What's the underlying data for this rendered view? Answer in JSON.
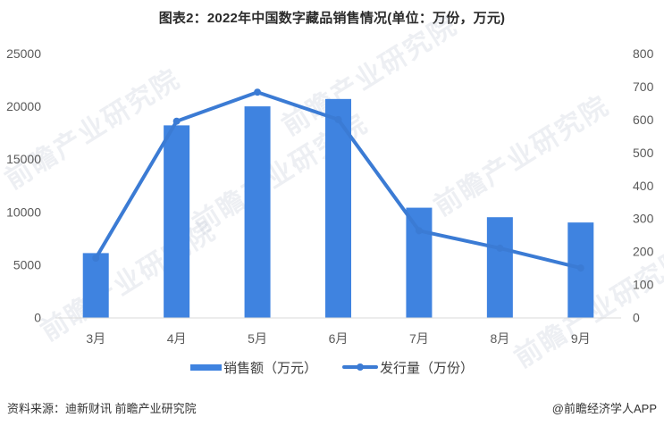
{
  "title": "图表2：2022年中国数字藏品销售情况(单位：万份，万元)",
  "watermark": {
    "text": "前瞻产业研究院"
  },
  "legend": {
    "bar_label": "销售额（万元）",
    "line_label": "发行量（万份）"
  },
  "footer": {
    "source": "资料来源：迪新财讯 前瞻产业研究院",
    "credit": "@前瞻经济学人APP"
  },
  "colors": {
    "bar": "#3f83e0",
    "line": "#3b7bd4",
    "axis": "#d9d9d9",
    "tick_text": "#595959"
  },
  "chart_data": {
    "type": "bar+line",
    "title": "图表2：2022年中国数字藏品销售情况(单位：万份，万元)",
    "categories": [
      "3月",
      "4月",
      "5月",
      "6月",
      "7月",
      "8月",
      "9月"
    ],
    "series": [
      {
        "name": "销售额（万元）",
        "type": "bar",
        "axis": "left",
        "values": [
          6100,
          18200,
          20000,
          20700,
          10400,
          9500,
          9000
        ]
      },
      {
        "name": "发行量（万份）",
        "type": "line",
        "axis": "right",
        "values": [
          180,
          595,
          683,
          600,
          263,
          210,
          150
        ]
      }
    ],
    "left_axis": {
      "ylim": [
        0,
        25000
      ],
      "ticks": [
        0,
        5000,
        10000,
        15000,
        20000,
        25000
      ]
    },
    "right_axis": {
      "ylim": [
        0,
        800
      ],
      "ticks": [
        0,
        100,
        200,
        300,
        400,
        500,
        600,
        700,
        800
      ]
    },
    "xlabel": "",
    "ylabel": "",
    "grid": false,
    "legend_position": "bottom"
  }
}
